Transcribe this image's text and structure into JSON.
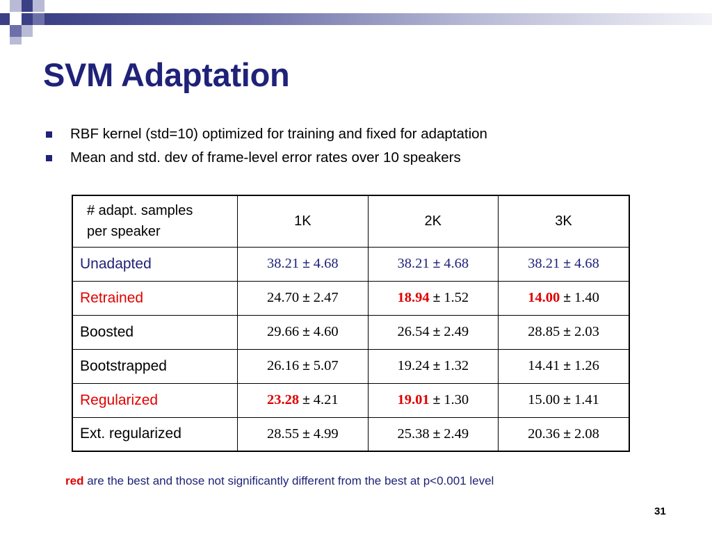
{
  "slide": {
    "title": "SVM Adaptation",
    "bullets": [
      "RBF kernel (std=10) optimized for training and fixed for adaptation",
      "Mean and std. dev of frame-level error rates over 10 speakers"
    ],
    "table": {
      "header": {
        "label_line1": "# adapt. samples",
        "label_line2": "per speaker",
        "columns": [
          "1K",
          "2K",
          "3K"
        ]
      },
      "rows": [
        {
          "label": "Unadapted",
          "cells": [
            {
              "mean": "38.21",
              "pm": "±",
              "sd": "4.68"
            },
            {
              "mean": "38.21",
              "pm": "±",
              "sd": "4.68"
            },
            {
              "mean": "38.21",
              "pm": "±",
              "sd": "4.68"
            }
          ]
        },
        {
          "label": "Retrained",
          "cells": [
            {
              "mean": "24.70",
              "pm": "±",
              "sd": "2.47"
            },
            {
              "mean": "18.94",
              "pm": "±",
              "sd": "1.52"
            },
            {
              "mean": "14.00",
              "pm": "±",
              "sd": "1.40"
            }
          ]
        },
        {
          "label": "Boosted",
          "cells": [
            {
              "mean": "29.66",
              "pm": "±",
              "sd": "4.60"
            },
            {
              "mean": "26.54",
              "pm": "±",
              "sd": "2.49"
            },
            {
              "mean": "28.85",
              "pm": "±",
              "sd": "2.03"
            }
          ]
        },
        {
          "label": "Bootstrapped",
          "cells": [
            {
              "mean": "26.16",
              "pm": "±",
              "sd": "5.07"
            },
            {
              "mean": "19.24",
              "pm": "±",
              "sd": "1.32"
            },
            {
              "mean": "14.41",
              "pm": "±",
              "sd": "1.26"
            }
          ]
        },
        {
          "label": "Regularized",
          "cells": [
            {
              "mean": "23.28",
              "pm": "±",
              "sd": "4.21"
            },
            {
              "mean": "19.01",
              "pm": "±",
              "sd": "1.30"
            },
            {
              "mean": "15.00",
              "pm": "±",
              "sd": "1.41"
            }
          ]
        },
        {
          "label": "Ext. regularized",
          "cells": [
            {
              "mean": "28.55",
              "pm": "±",
              "sd": "4.99"
            },
            {
              "mean": "25.38",
              "pm": "±",
              "sd": "2.49"
            },
            {
              "mean": "20.36",
              "pm": "±",
              "sd": "2.08"
            }
          ]
        }
      ]
    },
    "note": {
      "red_word": "red",
      "rest": " are the best and those not significantly different from the best at p<0.001 level"
    },
    "page_number": "31",
    "colors": {
      "accent_blue": "#1f2278",
      "highlight_red": "#e00000",
      "deco_dark": "#3b3f86",
      "deco_light": "#b9bbd6"
    }
  }
}
